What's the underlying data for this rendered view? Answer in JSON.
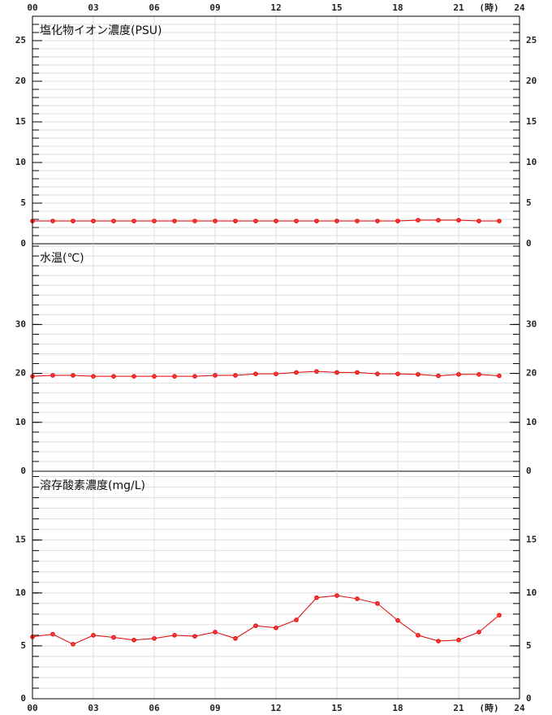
{
  "x_axis": {
    "xlim": [
      0,
      24
    ],
    "xticks": [
      {
        "value": 0,
        "label": "00"
      },
      {
        "value": 3,
        "label": "03"
      },
      {
        "value": 6,
        "label": "06"
      },
      {
        "value": 9,
        "label": "09"
      },
      12,
      15,
      18,
      21,
      24
    ],
    "unit_label": "(時)"
  },
  "chart_data": [
    {
      "type": "line",
      "title": "塩化物イオン濃度(PSU)",
      "color": "#e00000",
      "x": [
        0,
        1,
        2,
        3,
        4,
        5,
        6,
        7,
        8,
        9,
        10,
        11,
        12,
        13,
        14,
        15,
        16,
        17,
        18,
        19,
        20,
        21,
        22,
        23
      ],
      "values": [
        2.8,
        2.8,
        2.8,
        2.8,
        2.8,
        2.8,
        2.8,
        2.8,
        2.8,
        2.8,
        2.8,
        2.8,
        2.8,
        2.8,
        2.8,
        2.8,
        2.8,
        2.8,
        2.8,
        2.9,
        2.9,
        2.9,
        2.8,
        2.8
      ],
      "ylim": [
        0,
        28
      ],
      "yticks": [
        0,
        5,
        10,
        15,
        20,
        25
      ]
    },
    {
      "type": "line",
      "title": "水温(℃)",
      "color": "#e00000",
      "x": [
        0,
        1,
        2,
        3,
        4,
        5,
        6,
        7,
        8,
        9,
        10,
        11,
        12,
        13,
        14,
        15,
        16,
        17,
        18,
        19,
        20,
        21,
        22,
        23
      ],
      "values": [
        19.4,
        19.6,
        19.6,
        19.4,
        19.4,
        19.4,
        19.4,
        19.4,
        19.4,
        19.6,
        19.6,
        19.9,
        19.9,
        20.2,
        20.4,
        20.2,
        20.2,
        19.9,
        19.9,
        19.8,
        19.5,
        19.8,
        19.8,
        19.5
      ],
      "ylim": [
        0,
        46.5
      ],
      "yticks": [
        0,
        10,
        20,
        30
      ]
    },
    {
      "type": "line",
      "title": "溶存酸素濃度(mg/L)",
      "color": "#e00000",
      "x": [
        0,
        1,
        2,
        3,
        4,
        5,
        6,
        7,
        8,
        9,
        10,
        11,
        12,
        13,
        14,
        15,
        16,
        17,
        18,
        19,
        20,
        21,
        22,
        23
      ],
      "values": [
        5.85,
        6.1,
        5.15,
        6.0,
        5.8,
        5.55,
        5.7,
        6.0,
        5.9,
        6.3,
        5.7,
        6.9,
        6.7,
        7.45,
        9.55,
        9.75,
        9.45,
        9.0,
        7.4,
        6.0,
        5.45,
        5.55,
        6.3,
        7.9
      ],
      "ylim": [
        0,
        21.5
      ],
      "yticks": [
        0,
        5,
        10,
        15
      ]
    }
  ]
}
